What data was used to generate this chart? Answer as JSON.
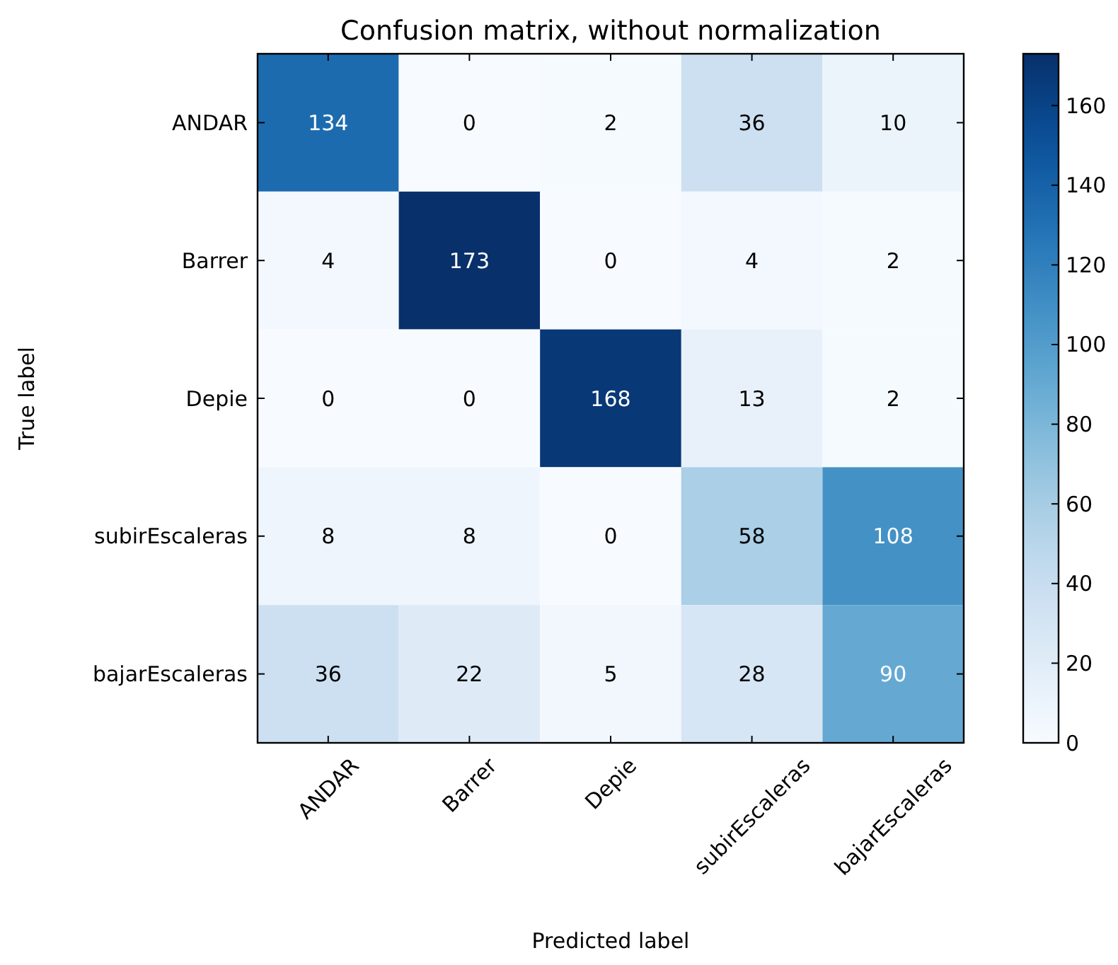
{
  "chart_data": {
    "type": "heatmap",
    "title": "Confusion matrix, without normalization",
    "xlabel": "Predicted label",
    "ylabel": "True label",
    "categories": [
      "ANDAR",
      "Barrer",
      "Depie",
      "subirEscaleras",
      "bajarEscaleras"
    ],
    "y_categories": [
      "ANDAR",
      "Barrer",
      "Depie",
      "subirEscaleras",
      "bajarEscaleras"
    ],
    "cells": [
      [
        134,
        0,
        2,
        36,
        10
      ],
      [
        4,
        173,
        0,
        4,
        2
      ],
      [
        0,
        0,
        168,
        13,
        2
      ],
      [
        8,
        8,
        0,
        58,
        108
      ],
      [
        36,
        22,
        5,
        28,
        90
      ]
    ],
    "clim": [
      0,
      173
    ],
    "cticks": [
      0,
      20,
      40,
      60,
      80,
      100,
      120,
      140,
      160
    ],
    "data_labels": true
  }
}
